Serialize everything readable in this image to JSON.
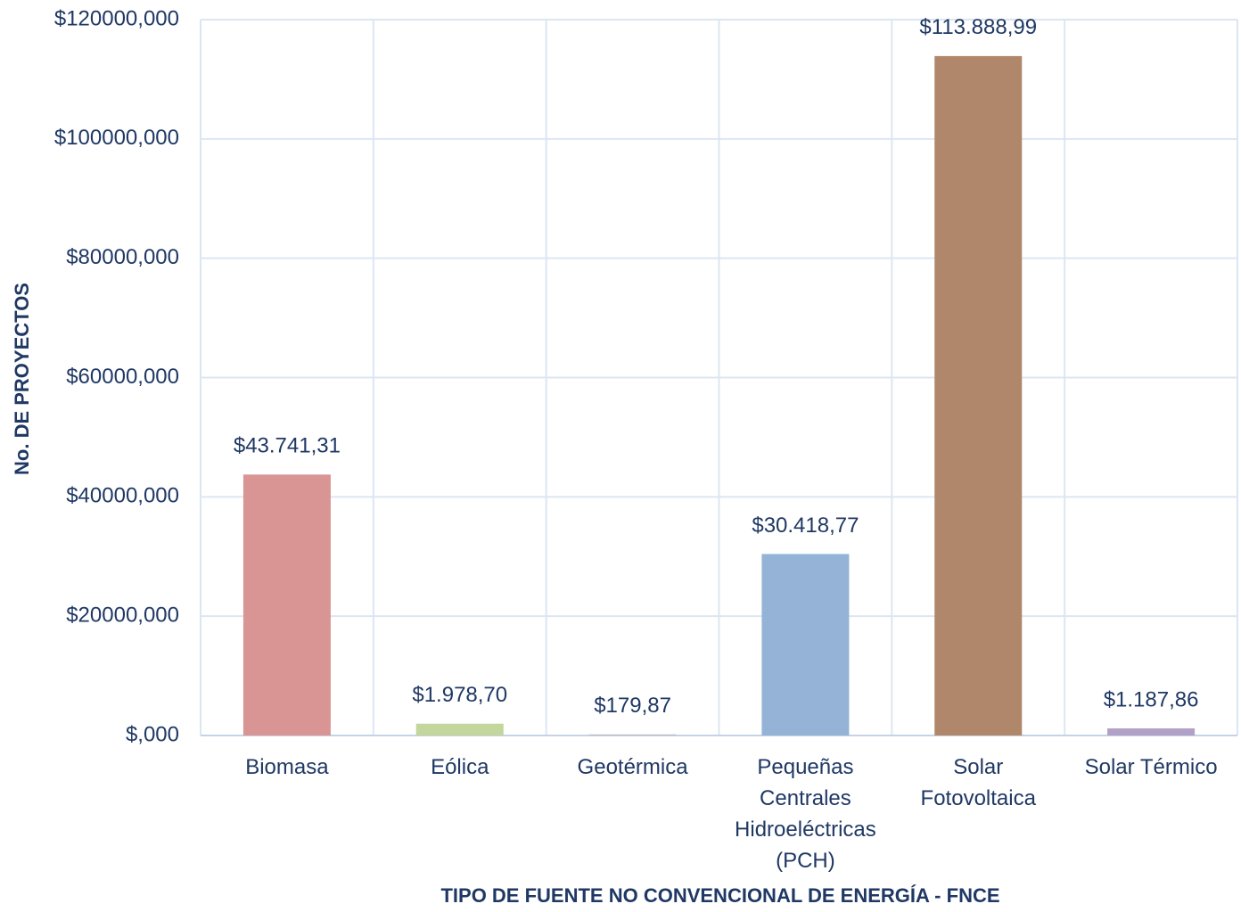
{
  "chart_data": {
    "type": "bar",
    "y_axis_label": "No. DE PROYECTOS",
    "x_axis_label": "TIPO DE FUENTE NO CONVENCIONAL DE ENERGÍA - FNCE",
    "categories": [
      "Biomasa",
      "Eólica",
      "Geotérmica",
      "Pequeñas Centrales Hidroeléctricas (PCH)",
      "Solar Fotovoltaica",
      "Solar Térmico"
    ],
    "values": [
      43741.31,
      1978.7,
      179.87,
      30418.77,
      113888.99,
      1187.86
    ],
    "value_labels": [
      "$43.741,31",
      "$1.978,70",
      "$179,87",
      "$30.418,77",
      "$113.888,99",
      "$1.187,86"
    ],
    "colors": [
      "#d99594",
      "#c3d69b",
      "#bfbfbf",
      "#95b3d7",
      "#b0876b",
      "#b2a1c7"
    ],
    "ylim": [
      0,
      120000
    ],
    "yticks": [
      {
        "value": 0,
        "label": "$,000"
      },
      {
        "value": 20000,
        "label": "$20000,000"
      },
      {
        "value": 40000,
        "label": "$40000,000"
      },
      {
        "value": 60000,
        "label": "$60000,000"
      },
      {
        "value": 80000,
        "label": "$80000,000"
      },
      {
        "value": 100000,
        "label": "$100000,000"
      },
      {
        "value": 120000,
        "label": "$120000,000"
      }
    ],
    "grid": true
  }
}
